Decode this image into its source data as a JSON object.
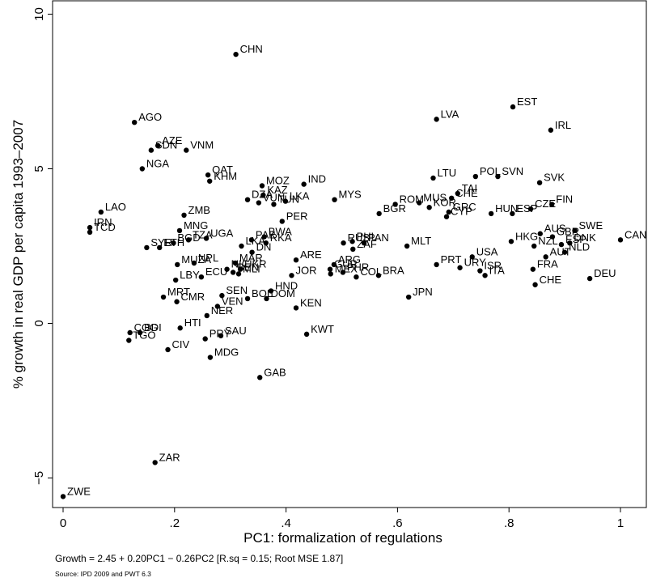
{
  "chart_data": {
    "type": "scatter",
    "xlabel": "PC1: formalization of regulations",
    "ylabel": "% growth in real GDP per capita 1993–2007",
    "xlim": [
      0,
      1
    ],
    "ylim": [
      -6,
      10
    ],
    "xticks": [
      0,
      0.2,
      0.4,
      0.6,
      0.8,
      1
    ],
    "xtick_labels": [
      "0",
      ".2",
      ".4",
      ".6",
      ".8",
      "1"
    ],
    "yticks": [
      -5,
      0,
      5,
      10
    ],
    "ytick_labels": [
      "−5",
      "0",
      "5",
      "10"
    ],
    "grid": false,
    "legend": "none",
    "marker_color": "#000000",
    "points": [
      {
        "label": "ZWE",
        "x": 0.0,
        "y": -5.6
      },
      {
        "label": "ZAR",
        "x": 0.165,
        "y": -4.5
      },
      {
        "label": "GAB",
        "x": 0.353,
        "y": -1.75
      },
      {
        "label": "MDG",
        "x": 0.264,
        "y": -1.1
      },
      {
        "label": "CIV",
        "x": 0.188,
        "y": -0.85
      },
      {
        "label": "TGO",
        "x": 0.118,
        "y": -0.55
      },
      {
        "label": "COG",
        "x": 0.12,
        "y": -0.3
      },
      {
        "label": "BDI",
        "x": 0.138,
        "y": -0.3
      },
      {
        "label": "HTI",
        "x": 0.21,
        "y": -0.15
      },
      {
        "label": "PRY",
        "x": 0.255,
        "y": -0.5
      },
      {
        "label": "SAU",
        "x": 0.283,
        "y": -0.4
      },
      {
        "label": "KWT",
        "x": 0.437,
        "y": -0.35
      },
      {
        "label": "KEN",
        "x": 0.418,
        "y": 0.5
      },
      {
        "label": "NER",
        "x": 0.258,
        "y": 0.25
      },
      {
        "label": "MRT",
        "x": 0.18,
        "y": 0.85
      },
      {
        "label": "CMR",
        "x": 0.204,
        "y": 0.7
      },
      {
        "label": "VEN",
        "x": 0.277,
        "y": 0.55
      },
      {
        "label": "SEN",
        "x": 0.285,
        "y": 0.9
      },
      {
        "label": "BOL",
        "x": 0.331,
        "y": 0.8
      },
      {
        "label": "DOM",
        "x": 0.365,
        "y": 0.8
      },
      {
        "label": "HND",
        "x": 0.373,
        "y": 1.05
      },
      {
        "label": "JPN",
        "x": 0.62,
        "y": 0.85
      },
      {
        "label": "LBY",
        "x": 0.202,
        "y": 1.4
      },
      {
        "label": "ECU",
        "x": 0.248,
        "y": 1.5
      },
      {
        "label": "NIC",
        "x": 0.294,
        "y": 1.75
      },
      {
        "label": "MUZA",
        "x": 0.205,
        "y": 1.9
      },
      {
        "label": "NPL",
        "x": 0.235,
        "y": 1.95
      },
      {
        "label": "ETH",
        "x": 0.173,
        "y": 2.45
      },
      {
        "label": "SYR",
        "x": 0.15,
        "y": 2.45
      },
      {
        "label": "BGD",
        "x": 0.198,
        "y": 2.6
      },
      {
        "label": "MNG",
        "x": 0.209,
        "y": 3.0
      },
      {
        "label": "UGA",
        "x": 0.257,
        "y": 2.75
      },
      {
        "label": "TZA",
        "x": 0.225,
        "y": 2.7
      },
      {
        "label": "ZMB",
        "x": 0.217,
        "y": 3.5
      },
      {
        "label": "TCD",
        "x": 0.048,
        "y": 2.95
      },
      {
        "label": "IRN",
        "x": 0.048,
        "y": 3.1
      },
      {
        "label": "LAO",
        "x": 0.068,
        "y": 3.6
      },
      {
        "label": "URY",
        "x": 0.712,
        "y": 1.8
      },
      {
        "label": "ISR",
        "x": 0.748,
        "y": 1.7
      },
      {
        "label": "ITA",
        "x": 0.757,
        "y": 1.55
      },
      {
        "label": "CHE",
        "x": 0.847,
        "y": 1.25
      },
      {
        "label": "DEU",
        "x": 0.945,
        "y": 1.45
      },
      {
        "label": "PHL",
        "x": 0.519,
        "y": 2.65
      },
      {
        "label": "RUS",
        "x": 0.503,
        "y": 2.6
      },
      {
        "label": "PAN",
        "x": 0.54,
        "y": 2.6
      },
      {
        "label": "ZAF",
        "x": 0.52,
        "y": 2.4
      },
      {
        "label": "ARG",
        "x": 0.486,
        "y": 1.9
      },
      {
        "label": "GUR",
        "x": 0.479,
        "y": 1.75
      },
      {
        "label": "MEX",
        "x": 0.48,
        "y": 1.6
      },
      {
        "label": "PHR",
        "x": 0.502,
        "y": 1.65
      },
      {
        "label": "COL",
        "x": 0.526,
        "y": 1.5
      },
      {
        "label": "BRA",
        "x": 0.566,
        "y": 1.55
      },
      {
        "label": "ARE",
        "x": 0.418,
        "y": 2.05
      },
      {
        "label": "JOR",
        "x": 0.41,
        "y": 1.55
      },
      {
        "label": "MLT",
        "x": 0.617,
        "y": 2.5
      },
      {
        "label": "PRT",
        "x": 0.67,
        "y": 1.9
      },
      {
        "label": "USA",
        "x": 0.734,
        "y": 2.15
      },
      {
        "label": "FRA",
        "x": 0.843,
        "y": 1.75
      },
      {
        "label": "HKG",
        "x": 0.804,
        "y": 2.65
      },
      {
        "label": "NZL",
        "x": 0.845,
        "y": 2.5
      },
      {
        "label": "AUT",
        "x": 0.866,
        "y": 2.15
      },
      {
        "label": "NLD",
        "x": 0.9,
        "y": 2.3
      },
      {
        "label": "AUS",
        "x": 0.856,
        "y": 2.9
      },
      {
        "label": "GBR",
        "x": 0.878,
        "y": 2.8
      },
      {
        "label": "SWE",
        "x": 0.918,
        "y": 3.0
      },
      {
        "label": "ESP",
        "x": 0.894,
        "y": 2.55
      },
      {
        "label": "DNK",
        "x": 0.909,
        "y": 2.6
      },
      {
        "label": "CAN",
        "x": 1.0,
        "y": 2.7
      },
      {
        "label": "HUN",
        "x": 0.768,
        "y": 3.55
      },
      {
        "label": "ESP",
        "x": 0.806,
        "y": 3.55
      },
      {
        "label": "CZE",
        "x": 0.839,
        "y": 3.7
      },
      {
        "label": "FIN",
        "x": 0.877,
        "y": 3.85
      },
      {
        "label": "SVK",
        "x": 0.855,
        "y": 4.55
      },
      {
        "label": "POL",
        "x": 0.74,
        "y": 4.75
      },
      {
        "label": "SVN",
        "x": 0.78,
        "y": 4.75
      },
      {
        "label": "LTU",
        "x": 0.664,
        "y": 4.7
      },
      {
        "label": "TAI",
        "x": 0.708,
        "y": 4.2
      },
      {
        "label": "CHE",
        "x": 0.697,
        "y": 4.05
      },
      {
        "label": "MUS",
        "x": 0.639,
        "y": 3.9
      },
      {
        "label": "KOR",
        "x": 0.657,
        "y": 3.75
      },
      {
        "label": "CYP",
        "x": 0.688,
        "y": 3.45
      },
      {
        "label": "GRC",
        "x": 0.692,
        "y": 3.6
      },
      {
        "label": "ROM",
        "x": 0.596,
        "y": 3.85
      },
      {
        "label": "BGR",
        "x": 0.567,
        "y": 3.55
      },
      {
        "label": "MYS",
        "x": 0.487,
        "y": 4.0
      },
      {
        "label": "IND",
        "x": 0.432,
        "y": 4.5
      },
      {
        "label": "MOZ",
        "x": 0.357,
        "y": 4.45
      },
      {
        "label": "KAZ",
        "x": 0.359,
        "y": 4.15
      },
      {
        "label": "DZA",
        "x": 0.331,
        "y": 4.0
      },
      {
        "label": "VUN",
        "x": 0.351,
        "y": 3.9
      },
      {
        "label": "TUN",
        "x": 0.378,
        "y": 3.85
      },
      {
        "label": "LKA",
        "x": 0.399,
        "y": 3.95
      },
      {
        "label": "PER",
        "x": 0.393,
        "y": 3.3
      },
      {
        "label": "BWA",
        "x": 0.361,
        "y": 2.8
      },
      {
        "label": "PAK",
        "x": 0.338,
        "y": 2.7
      },
      {
        "label": "RKA",
        "x": 0.364,
        "y": 2.6
      },
      {
        "label": "LKA",
        "x": 0.32,
        "y": 2.5
      },
      {
        "label": "DN",
        "x": 0.339,
        "y": 2.3
      },
      {
        "label": "MAR",
        "x": 0.309,
        "y": 1.95
      },
      {
        "label": "UKR",
        "x": 0.318,
        "y": 1.75
      },
      {
        "label": "BEN",
        "x": 0.305,
        "y": 1.65
      },
      {
        "label": "MLI",
        "x": 0.315,
        "y": 1.6
      },
      {
        "label": "QAT",
        "x": 0.26,
        "y": 4.8
      },
      {
        "label": "KHM",
        "x": 0.263,
        "y": 4.6
      },
      {
        "label": "NGA",
        "x": 0.142,
        "y": 5.0
      },
      {
        "label": "SDN",
        "x": 0.158,
        "y": 5.6
      },
      {
        "label": "AZE",
        "x": 0.17,
        "y": 5.75
      },
      {
        "label": "VNM",
        "x": 0.221,
        "y": 5.6
      },
      {
        "label": "AGO",
        "x": 0.128,
        "y": 6.5
      },
      {
        "label": "CHN",
        "x": 0.31,
        "y": 8.7
      },
      {
        "label": "LVA",
        "x": 0.67,
        "y": 6.6
      },
      {
        "label": "EST",
        "x": 0.807,
        "y": 7.0
      },
      {
        "label": "IRL",
        "x": 0.875,
        "y": 6.25
      }
    ]
  },
  "footnote": "Growth = 2.45 + 0.20PC1 − 0.26PC2 [R.sq = 0.15; Root MSE 1.87]",
  "source_note": "Source: IPD 2009 and PWT 6.3"
}
